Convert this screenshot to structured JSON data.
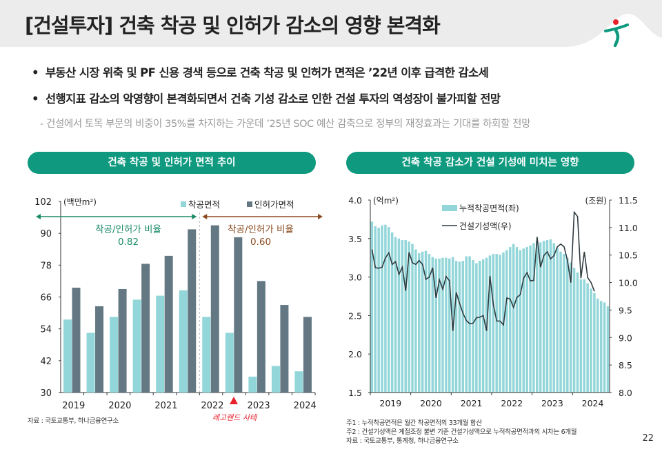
{
  "header": {
    "title": "[건설투자] 건축 착공 및 인허가 감소의 영향 본격화"
  },
  "bullets": [
    "부동산 시장 위축 및 PF 신용 경색 등으로 건축 착공 및 인허가 면적은 ’22년 이후 급격한 감소세",
    "선행지표 감소의 악영향이 본격화되면서 건축 기성 감소로 인한 건설 투자의 역성장이 불가피할 전망"
  ],
  "sub_bullet": "- 건설에서 토목 부문의 비중이 35%를 차지하는 가운데 ’25년 SOC 예산 감축으로 정부의 재정효과는 기대를 하회할 전망",
  "colors": {
    "accent": "#0f9a80",
    "bar_light": "#93d6d9",
    "bar_dark": "#647883",
    "ratio_before": "#1b8a68",
    "ratio_after": "#8a4a1e",
    "event": "#e8202a"
  },
  "logo": "hana-bank-logo",
  "chart_data": [
    {
      "type": "bar",
      "title": "건축 착공 및 인허가 면적 추이",
      "unit": "(백만m²)",
      "ylim": [
        30,
        102
      ],
      "yticks": [
        "102",
        "90",
        "78",
        "66",
        "54",
        "42",
        "30"
      ],
      "xticks": [
        "2019",
        "2020",
        "2021",
        "2022",
        "2023",
        "2024"
      ],
      "categories": [
        "2019H1",
        "2019H2",
        "2020H1",
        "2020H2",
        "2021H1",
        "2021H2",
        "2022H1",
        "2022H2",
        "2023H1",
        "2023H2",
        "2024H1"
      ],
      "series": [
        {
          "name": "착공면적",
          "values": [
            57.5,
            52.5,
            58.5,
            65,
            66.5,
            68.5,
            58.5,
            52.5,
            36,
            40,
            38
          ]
        },
        {
          "name": "인허가면적",
          "values": [
            69.5,
            62.5,
            69,
            78.5,
            81.5,
            91.5,
            93,
            88.5,
            72,
            63,
            58.5
          ]
        }
      ],
      "annotations": {
        "ratio_label": "착공/인허가 비율",
        "ratio_before": "0.82",
        "ratio_after": "0.60",
        "event": "레고랜드 사태"
      },
      "legend": "top-right",
      "source": "자료 : 국토교통부, 하나금융연구소"
    },
    {
      "type": "bar+line",
      "title": "건축 착공 감소가 건설 기성에 미치는 영향",
      "unit_left": "(억m²)",
      "unit_right": "(조원)",
      "ylim_left": [
        1.5,
        4.0
      ],
      "ylim_right": [
        8.0,
        11.5
      ],
      "yticks_left": [
        "4.0",
        "3.5",
        "3.0",
        "2.5",
        "2.0",
        "1.5"
      ],
      "yticks_right": [
        "11.5",
        "11.0",
        "10.5",
        "10.0",
        "9.5",
        "9.0",
        "8.5",
        "8.0"
      ],
      "xticks": [
        "2019",
        "2020",
        "2021",
        "2022",
        "2023",
        "2024"
      ],
      "series": [
        {
          "name": "누적착공면적(좌)",
          "values": [
            3.72,
            3.66,
            3.64,
            3.67,
            3.68,
            3.65,
            3.58,
            3.52,
            3.5,
            3.48,
            3.48,
            3.46,
            3.43,
            3.36,
            3.31,
            3.33,
            3.34,
            3.3,
            3.26,
            3.24,
            3.24,
            3.25,
            3.25,
            3.24,
            3.26,
            3.21,
            3.2,
            3.21,
            3.27,
            3.27,
            3.22,
            3.18,
            3.21,
            3.23,
            3.25,
            3.28,
            3.3,
            3.3,
            3.29,
            3.32,
            3.35,
            3.39,
            3.43,
            3.39,
            3.35,
            3.37,
            3.39,
            3.41,
            3.44,
            3.47,
            3.45,
            3.47,
            3.48,
            3.49,
            3.44,
            3.38,
            3.33,
            3.3,
            3.25,
            3.19,
            3.12,
            3.06,
            2.97,
            2.97,
            2.92,
            2.85,
            2.79,
            2.72,
            2.69,
            2.67,
            2.62
          ]
        },
        {
          "name": "건설기성액(우)",
          "values": [
            10.6,
            10.27,
            10.26,
            10.28,
            10.45,
            10.54,
            10.33,
            10.38,
            10.15,
            10.28,
            9.85,
            10.55,
            10.36,
            10.33,
            10.4,
            10.33,
            10.06,
            10.1,
            10.27,
            9.72,
            10.05,
            9.88,
            10.11,
            10.03,
            9.12,
            9.82,
            9.62,
            9.44,
            9.31,
            9.25,
            9.26,
            9.36,
            9.37,
            9.4,
            9.12,
            10.12,
            9.6,
            9.3,
            9.3,
            9.23,
            9.72,
            9.7,
            9.55,
            9.73,
            9.78,
            10.08,
            10.18,
            10.03,
            10.04,
            10.83,
            10.28,
            10.49,
            10.56,
            10.43,
            10.49,
            10.65,
            10.7,
            10.65,
            10.4,
            10.0,
            11.28,
            11.2,
            10.08,
            10.56,
            10.09,
            10.0,
            9.84
          ]
        }
      ],
      "legend": "top",
      "notes": [
        "주1 : 누적착공면적은 월간 착공면적의 33개월 합산",
        "주2 : 건설기성액은 계절조정 불변 기준 건설기성액으로 누적착공면적과의 시차는 6개월",
        "자료 : 국토교통부, 통계청, 하나금융연구소"
      ]
    }
  ],
  "page_number": "22"
}
